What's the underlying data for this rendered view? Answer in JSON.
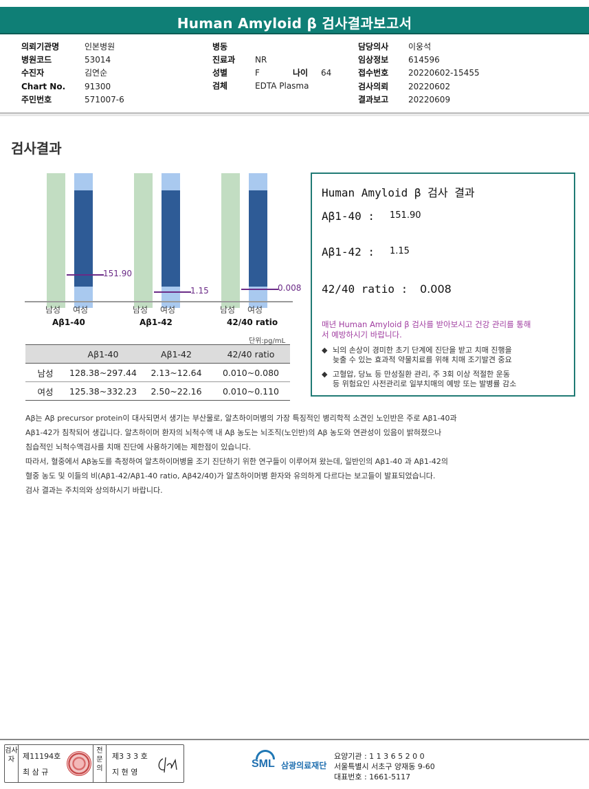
{
  "header": {
    "title": "Human Amyloid β 검사결과보고서"
  },
  "info": {
    "col1": [
      {
        "label": "의뢰기관명",
        "value": "인본병원"
      },
      {
        "label": "병원코드",
        "value": "53014"
      },
      {
        "label": "수진자",
        "value": "김연순"
      },
      {
        "label": "Chart No.",
        "value": "91300"
      },
      {
        "label": "주민번호",
        "value": "571007-6"
      }
    ],
    "col2": [
      {
        "label": "병동",
        "value": ""
      },
      {
        "label": "진료과",
        "value": "NR"
      },
      {
        "label": "성별",
        "value": "F"
      },
      {
        "label": "검체",
        "value": "EDTA Plasma"
      }
    ],
    "age": {
      "label": "나이",
      "value": "64"
    },
    "col3": [
      {
        "label": "담당의사",
        "value": "이웅석"
      },
      {
        "label": "임상정보",
        "value": "614596"
      },
      {
        "label": "접수번호",
        "value": "20220602-15455"
      },
      {
        "label": "검사의뢰",
        "value": "20220602"
      },
      {
        "label": "결과보고",
        "value": "20220609"
      }
    ]
  },
  "section_title": "검사결과",
  "chart_data": {
    "type": "bar",
    "groups": [
      {
        "name": "Aβ1-40",
        "male_label": "남성",
        "female_label": "여성",
        "male_range": [
          128.38,
          297.44
        ],
        "female_range": [
          125.38,
          332.23
        ],
        "patient_value": 151.9,
        "value_label": "151.90"
      },
      {
        "name": "Aβ1-42",
        "male_label": "남성",
        "female_label": "여성",
        "male_range": [
          2.13,
          12.64
        ],
        "female_range": [
          2.5,
          22.16
        ],
        "patient_value": 1.15,
        "value_label": "1.15"
      },
      {
        "name": "42/40 ratio",
        "male_label": "남성",
        "female_label": "여성",
        "male_range": [
          0.01,
          0.08
        ],
        "female_range": [
          0.01,
          0.11
        ],
        "patient_value": 0.008,
        "value_label": "0.008"
      }
    ],
    "unit": "단위:pg/mL"
  },
  "ref_table": {
    "headers": [
      "",
      "Aβ1-40",
      "Aβ1-42",
      "42/40 ratio"
    ],
    "rows": [
      [
        "남성",
        "128.38~297.44",
        "2.13~12.64",
        "0.010~0.080"
      ],
      [
        "여성",
        "125.38~332.23",
        "2.50~22.16",
        "0.010~0.110"
      ]
    ]
  },
  "result_box": {
    "title": "Human Amyloid β 검사 결과",
    "items": [
      {
        "label": "Aβ1-40 :",
        "value": "151.90"
      },
      {
        "label": "Aβ1-42 :",
        "value": "1.15"
      },
      {
        "label": "42/40 ratio :",
        "value": "0.008"
      }
    ],
    "advice_line1": "매년 Human Amyloid β 검사를 받아보시고 건강 관리를 통해",
    "advice_line2": "서 예방하시기 바랍니다.",
    "bullet1_line1": "뇌의 손상이 경미한 초기 단계에 진단을 받고 치매 진행을",
    "bullet1_line2": "늦출 수 있는 효과적 약물치료를 위해 치매 조기발견 중요",
    "bullet2_line1": "고혈압, 당뇨 등 만성질환 관리, 주 3회 이상 적절한 운동",
    "bullet2_line2": "등 위험요인 사전관리로 일부치매의 예방 또는 발병률 감소"
  },
  "description": [
    "Aβ는 Aβ precursor protein이 대사되면서 생기는 부산물로, 알츠하이머병의 가장 특징적인 병리학적 소견인 노인반은 주로 Aβ1-40과",
    "Aβ1-42가 침착되어 생깁니다. 알츠하이머 환자의 뇌척수액 내 Aβ 농도는 뇌조직(노인반)의 Aβ 농도와 연관성이 있음이 밝혀졌으나",
    "침습적인 뇌척수액검사를 치매 진단에 사용하기에는 제한점이 있습니다.",
    "따라서, 혈중에서 Aβ농도를 측정하여 알츠하이머병을 조기 진단하기 위한 연구들이 이루어져 왔는데, 일반인의 Aβ1-40 과 Aβ1-42의",
    "혈중 농도 및 이들의 비(Aβ1-42/Aβ1-40 ratio, Aβ42/40)가 알츠하이머병 환자와 유의하게 다르다는 보고들이 발표되었습니다.",
    "검사 결과는 주치의와 상의하시기 바랍니다."
  ],
  "footer": {
    "tester_label": "검사자",
    "tester_no": "제11194호",
    "tester_name": "최 삼 규",
    "reviewer_label": "전문의",
    "reviewer_no": "제3 3 3 호",
    "reviewer_name": "지 현 영",
    "logo_text": "SML",
    "org_name": "삼광의료재단",
    "code": "요양기관 : 1 1 3 6 5 2 0 0",
    "address": "서울특별시 서초구 양재동 9-60",
    "phone": "대표번호 : 1661-5117"
  }
}
